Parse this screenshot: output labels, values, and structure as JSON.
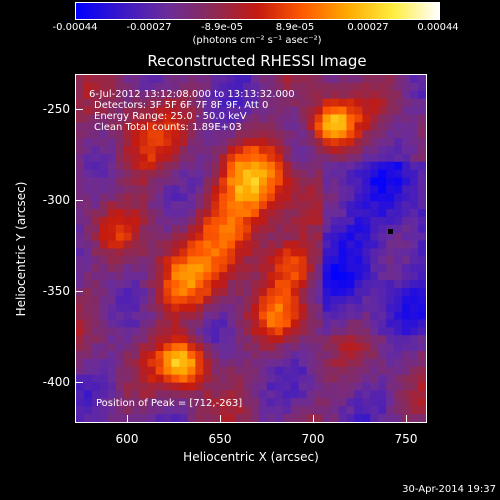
{
  "colorbar": {
    "ticks": [
      "-0.00044",
      "-0.00027",
      "-8.9e-05",
      "8.9e-05",
      "0.00027",
      "0.00044"
    ],
    "unit_label": "(photons cm⁻² s⁻¹ asec⁻²)",
    "colors": [
      "#0000ff",
      "#3a18c8",
      "#6a2c9a",
      "#8a2a58",
      "#c41a10",
      "#ff5a00",
      "#ffaa00",
      "#ffee40",
      "#ffffff"
    ]
  },
  "plot": {
    "title": "Reconstructed RHESSI Image",
    "time_range": "6-Jul-2012 13:12:08.000 to 13:13:32.000",
    "detectors": "Detectors: 3F 5F 6F 7F 8F 9F, Att 0",
    "energy_range": "Energy Range: 25.0 - 50.0 keV",
    "clean_counts": "Clean    Total counts: 1.89E+03",
    "peak_position": "Position of Peak = [712,-263]",
    "xlabel": "Heliocentric X (arcsec)",
    "ylabel": "Heliocentric Y (arcsec)",
    "xticks": [
      "600",
      "650",
      "700",
      "750"
    ],
    "yticks": [
      "-250",
      "-300",
      "-350",
      "-400"
    ]
  },
  "footer": {
    "timestamp": "30-Apr-2014 19:37"
  }
}
